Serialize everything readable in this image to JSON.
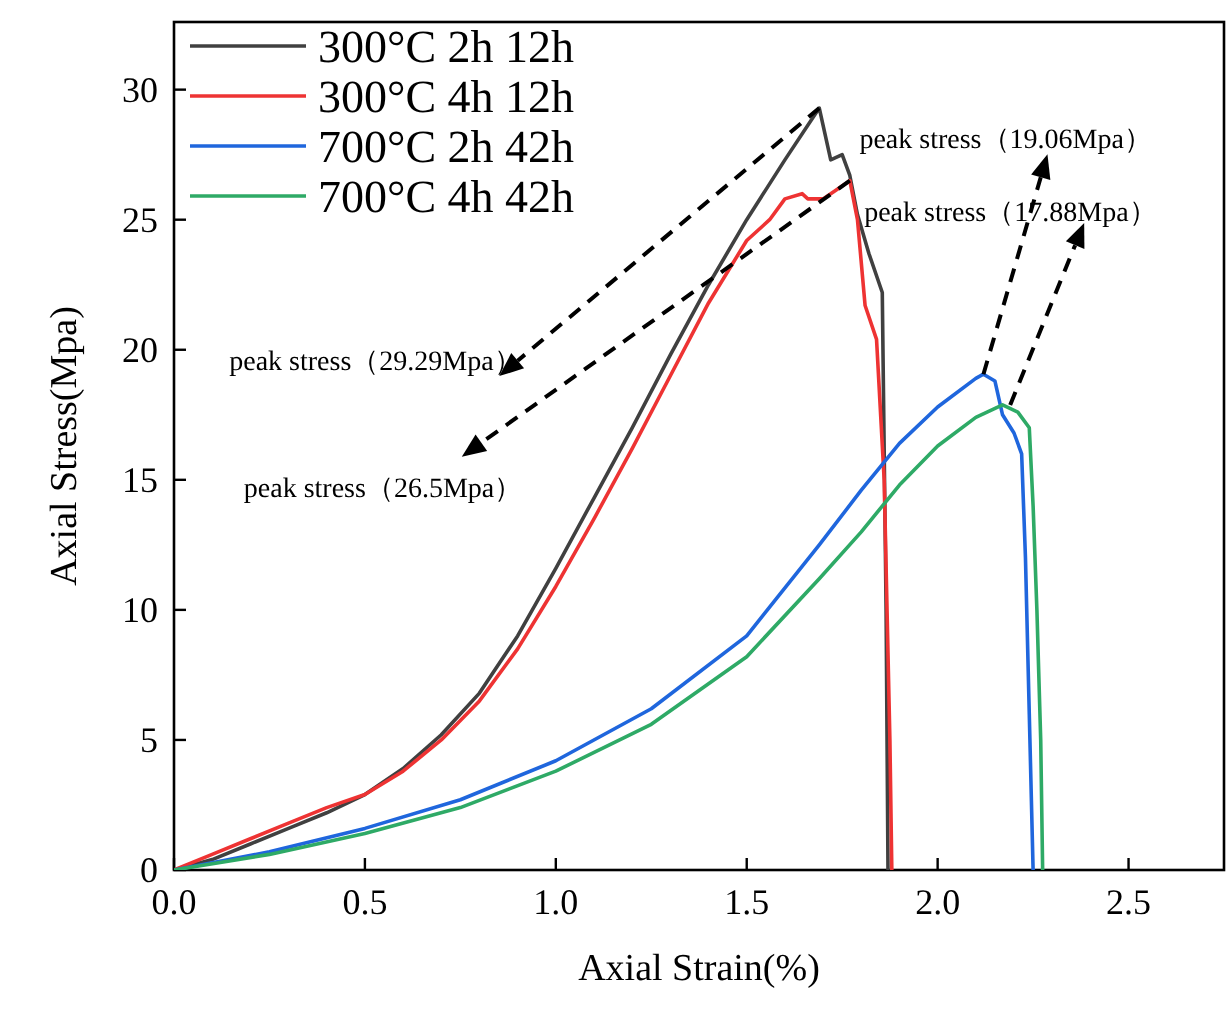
{
  "chart_data": {
    "type": "line",
    "xlabel": "Axial Strain(%)",
    "ylabel": "Axial Stress(Mpa)",
    "xlim": [
      0,
      2.75
    ],
    "ylim": [
      0,
      32.6
    ],
    "xticks": [
      {
        "value": 0,
        "label": "0.0"
      },
      0.5,
      {
        "value": 1,
        "label": "1.0"
      },
      1.5,
      {
        "value": 2,
        "label": "2.0"
      },
      2.5
    ],
    "yticks": [
      0,
      5,
      10,
      15,
      20,
      25,
      30
    ],
    "grid": false,
    "legend": "top left",
    "marker": "none",
    "line_style": "solid",
    "series": [
      {
        "name": "300°C 2h 12h",
        "color": "#404040",
        "x": [
          0,
          0.1,
          0.2,
          0.3,
          0.4,
          0.5,
          0.6,
          0.7,
          0.8,
          0.9,
          1.0,
          1.1,
          1.2,
          1.3,
          1.4,
          1.5,
          1.6,
          1.69,
          1.72,
          1.75,
          1.77,
          1.79,
          1.82,
          1.855,
          1.865,
          1.87
        ],
        "values": [
          0,
          0.4,
          1.0,
          1.6,
          2.2,
          2.9,
          3.9,
          5.2,
          6.8,
          9.0,
          11.6,
          14.3,
          17.0,
          19.8,
          22.5,
          25.0,
          27.3,
          29.29,
          27.3,
          27.5,
          26.7,
          25.2,
          23.7,
          22.2,
          10,
          0
        ]
      },
      {
        "name": "300°C 4h 12h",
        "color": "#ee3333",
        "x": [
          0,
          0.1,
          0.2,
          0.3,
          0.4,
          0.5,
          0.6,
          0.7,
          0.8,
          0.9,
          1.0,
          1.1,
          1.2,
          1.3,
          1.4,
          1.5,
          1.56,
          1.6,
          1.645,
          1.66,
          1.7,
          1.72,
          1.77,
          1.79,
          1.81,
          1.84,
          1.86,
          1.875,
          1.88
        ],
        "values": [
          0,
          0.6,
          1.2,
          1.8,
          2.4,
          2.9,
          3.8,
          5.0,
          6.5,
          8.5,
          10.9,
          13.5,
          16.2,
          19.0,
          21.8,
          24.2,
          25.0,
          25.8,
          26.0,
          25.8,
          25.8,
          26.0,
          26.5,
          25.0,
          21.7,
          20.4,
          15.0,
          5,
          0
        ]
      },
      {
        "name": "700°C 2h 42h",
        "color": "#1f66dd",
        "x": [
          0,
          0.25,
          0.5,
          0.75,
          1.0,
          1.25,
          1.5,
          1.69,
          1.8,
          1.9,
          2.0,
          2.1,
          2.12,
          2.15,
          2.17,
          2.2,
          2.22,
          2.23,
          2.24,
          2.25
        ],
        "values": [
          0,
          0.7,
          1.6,
          2.7,
          4.2,
          6.2,
          9.0,
          12.5,
          14.6,
          16.4,
          17.8,
          18.9,
          19.06,
          18.8,
          17.5,
          16.8,
          16.0,
          12,
          6,
          0
        ]
      },
      {
        "name": "700°C 4h 42h",
        "color": "#2eaa66",
        "x": [
          0,
          0.25,
          0.5,
          0.75,
          1.0,
          1.25,
          1.5,
          1.69,
          1.8,
          1.9,
          2.0,
          2.1,
          2.17,
          2.21,
          2.24,
          2.25,
          2.26,
          2.27,
          2.275
        ],
        "values": [
          0,
          0.6,
          1.4,
          2.4,
          3.8,
          5.6,
          8.2,
          11.2,
          13.0,
          14.8,
          16.3,
          17.4,
          17.88,
          17.6,
          17.0,
          14,
          10,
          5,
          0
        ]
      }
    ],
    "annotations": [
      {
        "text": "peak stress（29.29Mpa）",
        "x": 1.69,
        "y": 29.29
      },
      {
        "text": "peak stress（26.5Mpa）",
        "x": 1.77,
        "y": 26.5
      },
      {
        "text": "peak stress（19.06Mpa）",
        "x": 2.12,
        "y": 19.06
      },
      {
        "text": "peak stress（17.88Mpa）",
        "x": 2.19,
        "y": 17.88
      }
    ]
  }
}
